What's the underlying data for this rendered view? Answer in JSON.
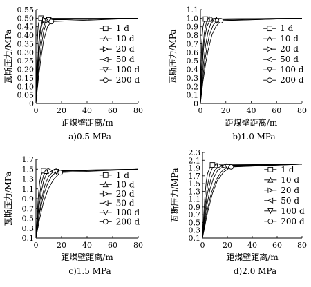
{
  "chart_data": [
    {
      "type": "line",
      "caption": "a)0.5 MPa",
      "xlabel": "距煤壁距离/m",
      "ylabel": "瓦斯压力/MPa",
      "xlim": [
        0,
        80
      ],
      "ylim": [
        0,
        0.55
      ],
      "x_ticks": [
        "0",
        "20",
        "40",
        "60",
        "80"
      ],
      "y_ticks": [
        "0",
        "0.05",
        "0.10",
        "0.15",
        "0.20",
        "0.25",
        "0.30",
        "0.35",
        "0.40",
        "0.45",
        "0.50",
        "0.55"
      ],
      "p0": 0.5,
      "legend_position": "right",
      "series": [
        {
          "name": "1 d",
          "marker": "square",
          "x": [
            0,
            0.5,
            1,
            1.5,
            2,
            3,
            4,
            80
          ],
          "y": [
            0,
            0.2,
            0.35,
            0.43,
            0.47,
            0.49,
            0.5,
            0.5
          ]
        },
        {
          "name": "10 d",
          "marker": "triangle-up",
          "x": [
            0,
            1,
            2,
            3,
            4,
            5,
            6,
            80
          ],
          "y": [
            0,
            0.2,
            0.34,
            0.42,
            0.46,
            0.48,
            0.49,
            0.5
          ]
        },
        {
          "name": "20 d",
          "marker": "triangle-right",
          "x": [
            0,
            1,
            2,
            3,
            4,
            5,
            7,
            80
          ],
          "y": [
            0,
            0.16,
            0.3,
            0.39,
            0.44,
            0.47,
            0.49,
            0.5
          ]
        },
        {
          "name": "50 d",
          "marker": "triangle-left",
          "x": [
            0,
            1,
            2,
            3,
            5,
            7,
            9,
            80
          ],
          "y": [
            0,
            0.12,
            0.24,
            0.33,
            0.43,
            0.47,
            0.49,
            0.5
          ]
        },
        {
          "name": "100 d",
          "marker": "triangle-down",
          "x": [
            0,
            1,
            2,
            4,
            6,
            8,
            10,
            80
          ],
          "y": [
            0,
            0.1,
            0.19,
            0.33,
            0.42,
            0.47,
            0.49,
            0.5
          ]
        },
        {
          "name": "200 d",
          "marker": "circle",
          "x": [
            0,
            1,
            2,
            4,
            6,
            9,
            12,
            80
          ],
          "y": [
            0,
            0.08,
            0.15,
            0.27,
            0.37,
            0.45,
            0.48,
            0.5
          ]
        }
      ]
    },
    {
      "type": "line",
      "caption": "b)1.0 MPa",
      "xlabel": "距煤壁距离/m",
      "ylabel": "瓦斯压力/MPa",
      "xlim": [
        0,
        80
      ],
      "ylim": [
        0,
        1.1
      ],
      "x_ticks": [
        "0",
        "20",
        "40",
        "60",
        "80"
      ],
      "y_ticks": [
        "0",
        "0.1",
        "0.2",
        "0.3",
        "0.4",
        "0.5",
        "0.6",
        "0.7",
        "0.8",
        "0.9",
        "1.0",
        "1.1"
      ],
      "p0": 1.0,
      "legend_position": "right",
      "series": [
        {
          "name": "1 d",
          "marker": "square",
          "x": [
            0,
            0.5,
            1,
            2,
            3,
            4,
            80
          ],
          "y": [
            0,
            0.4,
            0.7,
            0.9,
            0.96,
            0.99,
            1.0
          ]
        },
        {
          "name": "10 d",
          "marker": "triangle-up",
          "x": [
            0,
            1,
            2,
            3,
            4,
            5,
            7,
            80
          ],
          "y": [
            0,
            0.4,
            0.66,
            0.82,
            0.91,
            0.96,
            0.99,
            1.0
          ]
        },
        {
          "name": "20 d",
          "marker": "triangle-right",
          "x": [
            0,
            1,
            2,
            3,
            5,
            7,
            9,
            80
          ],
          "y": [
            0,
            0.3,
            0.56,
            0.73,
            0.9,
            0.96,
            0.99,
            1.0
          ]
        },
        {
          "name": "50 d",
          "marker": "triangle-left",
          "x": [
            0,
            1,
            2,
            4,
            6,
            8,
            11,
            80
          ],
          "y": [
            0,
            0.22,
            0.42,
            0.68,
            0.84,
            0.93,
            0.98,
            1.0
          ]
        },
        {
          "name": "100 d",
          "marker": "triangle-down",
          "x": [
            0,
            1,
            3,
            5,
            7,
            10,
            13,
            80
          ],
          "y": [
            0,
            0.17,
            0.45,
            0.65,
            0.8,
            0.92,
            0.97,
            1.0
          ]
        },
        {
          "name": "200 d",
          "marker": "circle",
          "x": [
            0,
            2,
            4,
            6,
            9,
            12,
            16,
            80
          ],
          "y": [
            0,
            0.26,
            0.46,
            0.62,
            0.8,
            0.9,
            0.97,
            1.0
          ]
        }
      ]
    },
    {
      "type": "line",
      "caption": "c)1.5 MPa",
      "xlabel": "距煤壁距离/m",
      "ylabel": "瓦斯压力/MPa",
      "xlim": [
        0,
        80
      ],
      "ylim": [
        0.1,
        1.7
      ],
      "x_ticks": [
        "0",
        "20",
        "40",
        "60",
        "80"
      ],
      "y_ticks": [
        "0.1",
        "0.3",
        "0.5",
        "0.7",
        "0.9",
        "1.1",
        "1.3",
        "1.5",
        "1.7"
      ],
      "p0": 1.5,
      "legend_position": "right",
      "series": [
        {
          "name": "1 d",
          "marker": "square",
          "x": [
            0,
            1,
            2,
            3,
            4,
            6,
            80
          ],
          "y": [
            0.1,
            0.6,
            1.0,
            1.25,
            1.38,
            1.47,
            1.5
          ]
        },
        {
          "name": "10 d",
          "marker": "triangle-up",
          "x": [
            0,
            1,
            2,
            4,
            6,
            8,
            80
          ],
          "y": [
            0.1,
            0.45,
            0.78,
            1.18,
            1.38,
            1.46,
            1.5
          ]
        },
        {
          "name": "20 d",
          "marker": "triangle-right",
          "x": [
            0,
            2,
            4,
            6,
            8,
            11,
            80
          ],
          "y": [
            0.1,
            0.65,
            1.02,
            1.26,
            1.39,
            1.47,
            1.5
          ]
        },
        {
          "name": "50 d",
          "marker": "triangle-left",
          "x": [
            0,
            2,
            4,
            7,
            10,
            14,
            80
          ],
          "y": [
            0.1,
            0.5,
            0.85,
            1.18,
            1.36,
            1.46,
            1.5
          ]
        },
        {
          "name": "100 d",
          "marker": "triangle-down",
          "x": [
            0,
            3,
            6,
            9,
            12,
            16,
            80
          ],
          "y": [
            0.1,
            0.62,
            0.98,
            1.2,
            1.35,
            1.45,
            1.5
          ]
        },
        {
          "name": "200 d",
          "marker": "circle",
          "x": [
            0,
            3,
            6,
            10,
            14,
            19,
            80
          ],
          "y": [
            0.1,
            0.5,
            0.84,
            1.12,
            1.3,
            1.43,
            1.5
          ]
        }
      ]
    },
    {
      "type": "line",
      "caption": "d)2.0 MPa",
      "xlabel": "距煤壁距离/m",
      "ylabel": "瓦斯压力/MPa",
      "xlim": [
        0,
        80
      ],
      "ylim": [
        0.1,
        2.3
      ],
      "x_ticks": [
        "0",
        "20",
        "40",
        "60",
        "80"
      ],
      "y_ticks": [
        "0.1",
        "0.3",
        "0.5",
        "0.7",
        "0.9",
        "1.1",
        "1.3",
        "1.5",
        "1.7",
        "1.9",
        "2.1",
        "2.3"
      ],
      "p0": 2.0,
      "legend_position": "right",
      "series": [
        {
          "name": "1 d",
          "marker": "square",
          "x": [
            0,
            1,
            2,
            3,
            4,
            6,
            8,
            80
          ],
          "y": [
            0.1,
            0.7,
            1.2,
            1.55,
            1.75,
            1.92,
            1.98,
            2.0
          ]
        },
        {
          "name": "10 d",
          "marker": "triangle-up",
          "x": [
            0,
            2,
            4,
            6,
            8,
            11,
            80
          ],
          "y": [
            0.1,
            0.9,
            1.45,
            1.75,
            1.9,
            1.97,
            2.0
          ]
        },
        {
          "name": "20 d",
          "marker": "triangle-right",
          "x": [
            0,
            2,
            4,
            7,
            10,
            14,
            80
          ],
          "y": [
            0.1,
            0.75,
            1.25,
            1.65,
            1.85,
            1.96,
            2.0
          ]
        },
        {
          "name": "50 d",
          "marker": "triangle-left",
          "x": [
            0,
            3,
            6,
            9,
            12,
            17,
            80
          ],
          "y": [
            0.1,
            0.85,
            1.35,
            1.65,
            1.83,
            1.95,
            2.0
          ]
        },
        {
          "name": "100 d",
          "marker": "triangle-down",
          "x": [
            0,
            3,
            7,
            11,
            15,
            20,
            80
          ],
          "y": [
            0.1,
            0.7,
            1.25,
            1.6,
            1.8,
            1.93,
            2.0
          ]
        },
        {
          "name": "200 d",
          "marker": "circle",
          "x": [
            0,
            4,
            8,
            12,
            17,
            23,
            80
          ],
          "y": [
            0.1,
            0.75,
            1.25,
            1.58,
            1.8,
            1.93,
            2.0
          ]
        }
      ]
    }
  ]
}
